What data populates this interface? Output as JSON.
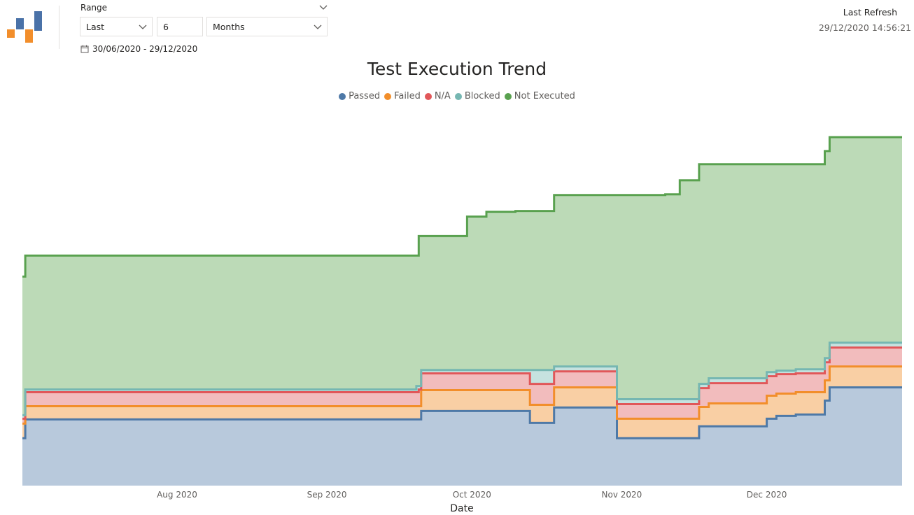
{
  "header": {
    "range_label": "Range",
    "range_mode": "Last",
    "range_count": "6",
    "range_unit": "Months",
    "date_range": "30/06/2020 - 29/12/2020",
    "last_refresh_label": "Last Refresh",
    "last_refresh_value": "29/12/2020 14:56:21"
  },
  "logo_colors": {
    "blue": "#4a72a8",
    "orange": "#f28e2b"
  },
  "chart_data": {
    "type": "area",
    "subtype": "stacked step area",
    "title": "Test Execution Trend",
    "xlabel": "Date",
    "ylabel": "",
    "x_ticks": [
      {
        "label": "Aug 2020",
        "day": 32
      },
      {
        "label": "Sep 2020",
        "day": 63
      },
      {
        "label": "Oct 2020",
        "day": 93
      },
      {
        "label": "Nov 2020",
        "day": 124
      },
      {
        "label": "Dec 2020",
        "day": 154
      }
    ],
    "x_domain_days": [
      0,
      182
    ],
    "ylim": [
      0,
      500
    ],
    "grid": false,
    "legend_position": "top-center",
    "series": [
      {
        "name": "Passed",
        "color": "#4e79a7",
        "fill": "#b8c9dc"
      },
      {
        "name": "Failed",
        "color": "#f28e2b",
        "fill": "#f9cfa4"
      },
      {
        "name": "N/A",
        "color": "#e15759",
        "fill": "#f2bcbd"
      },
      {
        "name": "Blocked",
        "color": "#76b7b2",
        "fill": "#c6e2df"
      },
      {
        "name": "Not Executed",
        "color": "#59a14f",
        "fill": "#bcdab7"
      }
    ],
    "steps_cumulative": [
      {
        "day": 0,
        "values": [
          68,
          89,
          96,
          101,
          300
        ]
      },
      {
        "day": 0.6,
        "values": [
          95,
          114,
          134,
          138,
          330
        ]
      },
      {
        "day": 81,
        "values": [
          95,
          114,
          134,
          138,
          330
        ]
      },
      {
        "day": 81.5,
        "values": [
          95,
          114,
          134,
          143,
          330
        ]
      },
      {
        "day": 82,
        "values": [
          95,
          114,
          138,
          143,
          358
        ]
      },
      {
        "day": 82.5,
        "values": [
          107,
          137,
          161,
          166,
          358
        ]
      },
      {
        "day": 91,
        "values": [
          107,
          137,
          161,
          166,
          358
        ]
      },
      {
        "day": 92,
        "values": [
          107,
          137,
          161,
          166,
          386
        ]
      },
      {
        "day": 96,
        "values": [
          107,
          137,
          161,
          166,
          393
        ]
      },
      {
        "day": 102,
        "values": [
          107,
          137,
          161,
          166,
          394
        ]
      },
      {
        "day": 105,
        "values": [
          90,
          116,
          146,
          166,
          394
        ]
      },
      {
        "day": 110,
        "values": [
          112,
          141,
          164,
          171,
          417
        ]
      },
      {
        "day": 123,
        "values": [
          68,
          96,
          117,
          124,
          417
        ]
      },
      {
        "day": 133,
        "values": [
          68,
          96,
          117,
          124,
          418
        ]
      },
      {
        "day": 136,
        "values": [
          68,
          96,
          117,
          124,
          438
        ]
      },
      {
        "day": 140,
        "values": [
          85,
          113,
          140,
          146,
          461
        ]
      },
      {
        "day": 142,
        "values": [
          85,
          118,
          147,
          154,
          461
        ]
      },
      {
        "day": 154,
        "values": [
          96,
          129,
          157,
          163,
          461
        ]
      },
      {
        "day": 156,
        "values": [
          100,
          132,
          160,
          165,
          461
        ]
      },
      {
        "day": 160,
        "values": [
          102,
          134,
          161,
          167,
          461
        ]
      },
      {
        "day": 166,
        "values": [
          122,
          151,
          177,
          183,
          480
        ]
      },
      {
        "day": 167,
        "values": [
          141,
          171,
          198,
          205,
          500
        ]
      },
      {
        "day": 182,
        "values": [
          141,
          171,
          198,
          205,
          500
        ]
      }
    ]
  }
}
